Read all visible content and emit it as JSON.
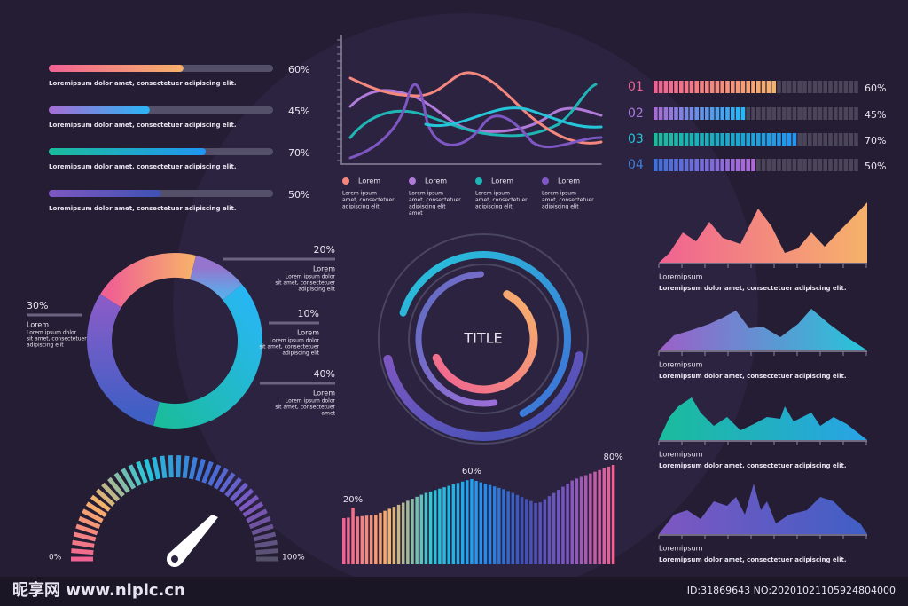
{
  "progress_bars": [
    {
      "value": 60,
      "label": "60%",
      "text": "Loremipsum dolor amet, consectetuer adipiscing elit."
    },
    {
      "value": 45,
      "label": "45%",
      "text": "Loremipsum dolor amet, consectetuer adipiscing elit."
    },
    {
      "value": 70,
      "label": "70%",
      "text": "Loremipsum dolor amet, consectetuer adipiscing elit."
    },
    {
      "value": 50,
      "label": "50%",
      "text": "Loremipsum dolor amet, consectetuer adipiscing elit."
    }
  ],
  "line_chart": {
    "legend": [
      {
        "name": "Lorem",
        "color": "#f4877e",
        "text": [
          "Lorem ipsum",
          "amet, consectetuer",
          "adipiscing elit"
        ]
      },
      {
        "name": "Lorem",
        "color": "#b07ad8",
        "text": [
          "Lorem ipsum",
          "amet, consectetuer",
          "adipiscing elit",
          "amet"
        ]
      },
      {
        "name": "Lorem",
        "color": "#1fb5b5",
        "text": [
          "Lorem ipsum",
          "amet, consectetuer",
          "adipiscing elit"
        ]
      },
      {
        "name": "Lorem",
        "color": "#7e57c2",
        "text": [
          "Lorem ipsum",
          "amet, consectetuer",
          "adipiscing elit"
        ]
      }
    ]
  },
  "segment_bars": [
    {
      "index": "01",
      "value": 60,
      "label": "60%"
    },
    {
      "index": "02",
      "value": 45,
      "label": "45%"
    },
    {
      "index": "03",
      "value": 70,
      "label": "70%"
    },
    {
      "index": "04",
      "value": 50,
      "label": "50%"
    }
  ],
  "donut": {
    "segments": [
      {
        "value": 20,
        "label": "20%",
        "name": "Lorem",
        "text": [
          "Lorem ipsum dolor",
          "sit amet, consectetuer",
          "adipiscing elit"
        ]
      },
      {
        "value": 10,
        "label": "10%",
        "name": "Lorem",
        "text": [
          "Lorem ipsum dolor",
          "sit amet, consectetuer",
          "adipiscing elit"
        ]
      },
      {
        "value": 40,
        "label": "40%",
        "name": "Lorem",
        "text": [
          "Lorem ipsum dolor",
          "sit amet, consectetuer",
          "amet"
        ]
      },
      {
        "value": 30,
        "label": "30%",
        "name": "Lorem",
        "text": [
          "Lorem ipsum dolor",
          "sit amet, consectetuer",
          "adipiscing elit"
        ]
      }
    ]
  },
  "rings": {
    "title": "TITLE"
  },
  "gauge": {
    "min_label": "0%",
    "max_label": "100%"
  },
  "bar_chart": {
    "labels": [
      {
        "value": 20,
        "label": "20%"
      },
      {
        "value": 60,
        "label": "60%"
      },
      {
        "value": 80,
        "label": "80%"
      }
    ]
  },
  "area_charts": [
    {
      "title": "Loremipsum",
      "text": "Loremipsum dolor amet, consectetuer adipiscing elit."
    },
    {
      "title": "Loremipsum",
      "text": "Loremipsum dolor amet, consectetuer adipiscing elit."
    },
    {
      "title": "Loremipsum",
      "text": "Loremipsum dolor amet, consectetuer adipiscing elit."
    },
    {
      "title": "Loremipsum",
      "text": "Loremipsum dolor amet, consectetuer adipiscing elit."
    }
  ],
  "watermark": {
    "site": "昵享网 www.nipic.cn",
    "id": "ID:31869643 NO:20201021105924804000"
  }
}
